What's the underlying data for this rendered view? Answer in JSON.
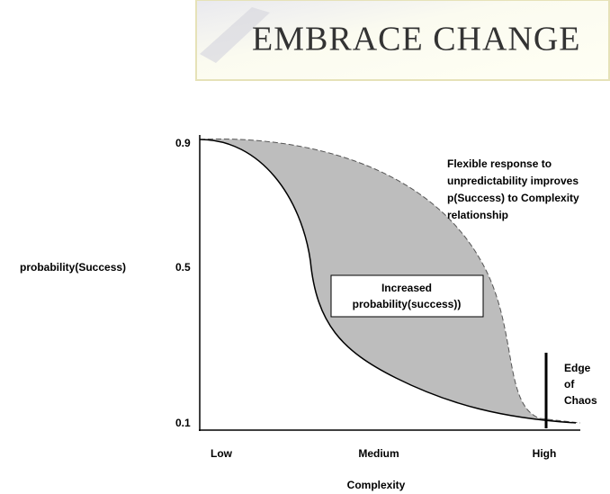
{
  "banner": {
    "title": "EMBRACE CHANGE"
  },
  "axes": {
    "y_label": "probability(Success)",
    "y_ticks": [
      "0.9",
      "0.5",
      "0.1"
    ],
    "x_ticks": [
      "Low",
      "Medium",
      "High"
    ],
    "x_label": "Complexity"
  },
  "annotations": {
    "note": [
      "Flexible response to",
      "unpredictability improves",
      "p(Success) to Complexity",
      "relationship"
    ],
    "box": [
      "Increased",
      "probability(success))"
    ],
    "edge": [
      "Edge",
      "of",
      "Chaos"
    ]
  }
}
